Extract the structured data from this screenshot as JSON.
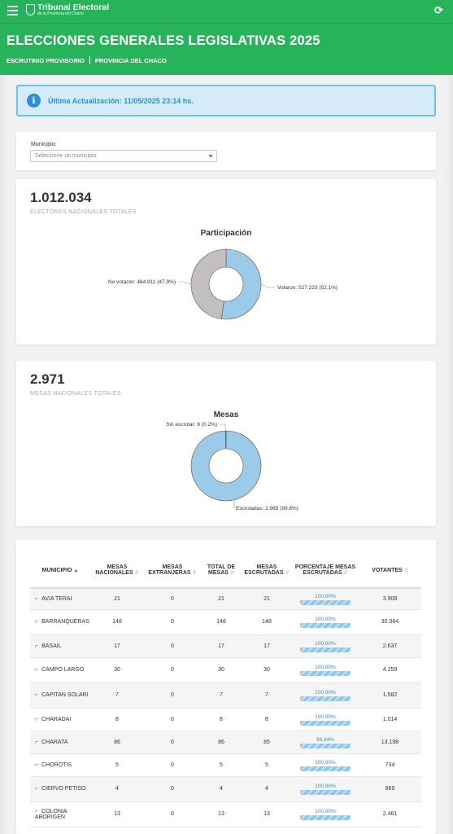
{
  "topbar": {
    "brand_title": "Tribunal Electoral",
    "brand_subtitle": "de la Provincia del Chaco",
    "menu_icon": "hamburger-icon",
    "refresh_icon": "refresh-icon"
  },
  "hero": {
    "title": "ELECCIONES GENERALES LEGISLATIVAS 2025",
    "crumb1": "ESCRUTINIO PROVISORIO",
    "crumb2": "PROVINCIA DEL CHACO"
  },
  "alert": {
    "text": "Última Actualización: 11/05/2025 23:14 hs.",
    "icon": "info-icon"
  },
  "filter": {
    "label": "Municipio:",
    "placeholder": "Seleccione un municipio"
  },
  "electores": {
    "value": "1.012.034",
    "caption": "ELECTORES NACIONALES TOTALES"
  },
  "mesas": {
    "value": "2.971",
    "caption": "MESAS NACIONALES TOTALES"
  },
  "table": {
    "headers": [
      "MUNICIPIO",
      "MESAS NACIONALES",
      "MESAS EXTRANJERAS",
      "TOTAL DE MESAS",
      "MESAS ESCRUTADAS",
      "PORCENTAJE MESAS ESCRUTADAS",
      "VOTANTES"
    ],
    "rows": [
      {
        "municipio": "AVIA TERAI",
        "nac": "21",
        "ext": "0",
        "total": "21",
        "escr": "21",
        "pct": "100,00%",
        "pct_value": 100,
        "votantes": "3.908"
      },
      {
        "municipio": "BARRANQUERAS",
        "nac": "148",
        "ext": "0",
        "total": "148",
        "escr": "148",
        "pct": "100,00%",
        "pct_value": 100,
        "votantes": "30.064"
      },
      {
        "municipio": "BASAIL",
        "nac": "17",
        "ext": "0",
        "total": "17",
        "escr": "17",
        "pct": "100,00%",
        "pct_value": 100,
        "votantes": "2.637"
      },
      {
        "municipio": "CAMPO LARGO",
        "nac": "30",
        "ext": "0",
        "total": "30",
        "escr": "30",
        "pct": "100,00%",
        "pct_value": 100,
        "votantes": "4.259"
      },
      {
        "municipio": "CAPITAN SOLARI",
        "nac": "7",
        "ext": "0",
        "total": "7",
        "escr": "7",
        "pct": "100,00%",
        "pct_value": 100,
        "votantes": "1.582"
      },
      {
        "municipio": "CHARADAI",
        "nac": "8",
        "ext": "0",
        "total": "8",
        "escr": "8",
        "pct": "100,00%",
        "pct_value": 100,
        "votantes": "1.014"
      },
      {
        "municipio": "CHARATA",
        "nac": "86",
        "ext": "0",
        "total": "86",
        "escr": "85",
        "pct": "98,84%",
        "pct_value": 98.84,
        "votantes": "13.198"
      },
      {
        "municipio": "CHOROTIS",
        "nac": "5",
        "ext": "0",
        "total": "5",
        "escr": "5",
        "pct": "100,00%",
        "pct_value": 100,
        "votantes": "734"
      },
      {
        "municipio": "CIERVO PETISO",
        "nac": "4",
        "ext": "0",
        "total": "4",
        "escr": "4",
        "pct": "100,00%",
        "pct_value": 100,
        "votantes": "869"
      },
      {
        "municipio": "COLONIA ABORIGEN",
        "nac": "13",
        "ext": "0",
        "total": "13",
        "escr": "13",
        "pct": "100,00%",
        "pct_value": 100,
        "votantes": "2.461"
      }
    ]
  },
  "chart_data": [
    {
      "type": "pie",
      "title": "Participación",
      "labels": [
        "Votaron",
        "No votaron"
      ],
      "values": [
        527223,
        484811
      ],
      "data_labels": [
        "Votaron: 527.223 (52.1%)",
        "No votaron: 484.811 (47.9%)"
      ],
      "colors": [
        "#9ccbea",
        "#c4bfbf"
      ]
    },
    {
      "type": "pie",
      "title": "Mesas",
      "labels": [
        "Escrutadas",
        "Sin escrutar"
      ],
      "values": [
        2965,
        6
      ],
      "data_labels": [
        "Escrutadas: 2.965 (99.8%)",
        "Sin escrutar: 6 (0.2%)"
      ],
      "colors": [
        "#9ccbea",
        "#c4bfbf"
      ]
    }
  ]
}
